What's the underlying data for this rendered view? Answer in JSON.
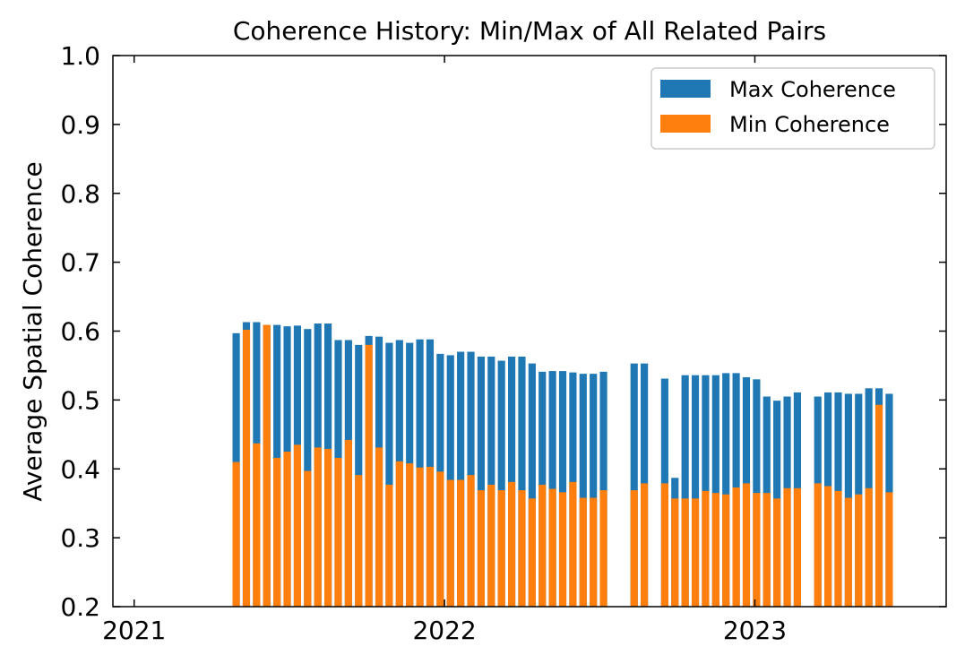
{
  "chart_data": {
    "type": "bar",
    "title": "Coherence History: Min/Max of All Related Pairs",
    "xlabel": "",
    "ylabel": "Average Spatial Coherence",
    "ylim": [
      0.2,
      1.0
    ],
    "xlim": [
      "2020-12-07",
      "2023-08-14"
    ],
    "yticks": [
      "0.2",
      "0.3",
      "0.4",
      "0.5",
      "0.6",
      "0.7",
      "0.8",
      "0.9",
      "1.0"
    ],
    "xticks": [
      {
        "date": "2021-01-01",
        "label": "2021"
      },
      {
        "date": "2022-01-01",
        "label": "2022"
      },
      {
        "date": "2023-01-01",
        "label": "2023"
      }
    ],
    "legend": "top-right",
    "grid": false,
    "series": [
      {
        "name": "Max Coherence",
        "color": "#1f77b4",
        "x": [
          "2021-05-01",
          "2021-05-13",
          "2021-05-25",
          "2021-06-06",
          "2021-06-18",
          "2021-06-30",
          "2021-07-12",
          "2021-07-24",
          "2021-08-05",
          "2021-08-17",
          "2021-08-29",
          "2021-09-10",
          "2021-09-22",
          "2021-10-04",
          "2021-10-16",
          "2021-10-28",
          "2021-11-09",
          "2021-11-21",
          "2021-12-03",
          "2021-12-15",
          "2021-12-27",
          "2022-01-08",
          "2022-01-20",
          "2022-02-01",
          "2022-02-13",
          "2022-02-25",
          "2022-03-09",
          "2022-03-21",
          "2022-04-02",
          "2022-04-14",
          "2022-04-26",
          "2022-05-08",
          "2022-05-20",
          "2022-06-01",
          "2022-06-13",
          "2022-06-25",
          "2022-07-07",
          "2022-08-12",
          "2022-08-24",
          "2022-09-17",
          "2022-09-29",
          "2022-10-11",
          "2022-10-23",
          "2022-11-04",
          "2022-11-16",
          "2022-11-28",
          "2022-12-10",
          "2022-12-22",
          "2023-01-03",
          "2023-01-15",
          "2023-01-27",
          "2023-02-08",
          "2023-02-20",
          "2023-03-16",
          "2023-03-28",
          "2023-04-09",
          "2023-04-21",
          "2023-05-03",
          "2023-05-15",
          "2023-05-27",
          "2023-06-08"
        ],
        "values": [
          0.597,
          0.613,
          0.613,
          0.609,
          0.609,
          0.607,
          0.608,
          0.603,
          0.611,
          0.611,
          0.587,
          0.587,
          0.58,
          0.593,
          0.592,
          0.583,
          0.587,
          0.583,
          0.588,
          0.588,
          0.567,
          0.565,
          0.57,
          0.57,
          0.563,
          0.563,
          0.557,
          0.563,
          0.563,
          0.553,
          0.541,
          0.542,
          0.542,
          0.54,
          0.538,
          0.538,
          0.541,
          0.553,
          0.553,
          0.531,
          0.387,
          0.536,
          0.536,
          0.536,
          0.536,
          0.539,
          0.539,
          0.533,
          0.53,
          0.505,
          0.499,
          0.505,
          0.511,
          0.505,
          0.511,
          0.511,
          0.509,
          0.509,
          0.517,
          0.517,
          0.509
        ]
      },
      {
        "name": "Min Coherence",
        "color": "#ff7f0e",
        "x": [
          "2021-05-01",
          "2021-05-13",
          "2021-05-25",
          "2021-06-06",
          "2021-06-18",
          "2021-06-30",
          "2021-07-12",
          "2021-07-24",
          "2021-08-05",
          "2021-08-17",
          "2021-08-29",
          "2021-09-10",
          "2021-09-22",
          "2021-10-04",
          "2021-10-16",
          "2021-10-28",
          "2021-11-09",
          "2021-11-21",
          "2021-12-03",
          "2021-12-15",
          "2021-12-27",
          "2022-01-08",
          "2022-01-20",
          "2022-02-01",
          "2022-02-13",
          "2022-02-25",
          "2022-03-09",
          "2022-03-21",
          "2022-04-02",
          "2022-04-14",
          "2022-04-26",
          "2022-05-08",
          "2022-05-20",
          "2022-06-01",
          "2022-06-13",
          "2022-06-25",
          "2022-07-07",
          "2022-08-12",
          "2022-08-24",
          "2022-09-17",
          "2022-09-29",
          "2022-10-11",
          "2022-10-23",
          "2022-11-04",
          "2022-11-16",
          "2022-11-28",
          "2022-12-10",
          "2022-12-22",
          "2023-01-03",
          "2023-01-15",
          "2023-01-27",
          "2023-02-08",
          "2023-02-20",
          "2023-03-16",
          "2023-03-28",
          "2023-04-09",
          "2023-04-21",
          "2023-05-03",
          "2023-05-15",
          "2023-05-27",
          "2023-06-08"
        ],
        "values": [
          0.41,
          0.602,
          0.437,
          0.609,
          0.416,
          0.425,
          0.435,
          0.397,
          0.431,
          0.429,
          0.416,
          0.442,
          0.391,
          0.58,
          0.431,
          0.377,
          0.411,
          0.408,
          0.402,
          0.403,
          0.396,
          0.384,
          0.384,
          0.391,
          0.369,
          0.377,
          0.369,
          0.381,
          0.369,
          0.357,
          0.377,
          0.371,
          0.366,
          0.381,
          0.358,
          0.358,
          0.369,
          0.369,
          0.379,
          0.379,
          0.357,
          0.357,
          0.357,
          0.368,
          0.365,
          0.363,
          0.373,
          0.379,
          0.365,
          0.365,
          0.357,
          0.372,
          0.372,
          0.379,
          0.375,
          0.368,
          0.358,
          0.363,
          0.372,
          0.493,
          0.366
        ]
      }
    ]
  }
}
